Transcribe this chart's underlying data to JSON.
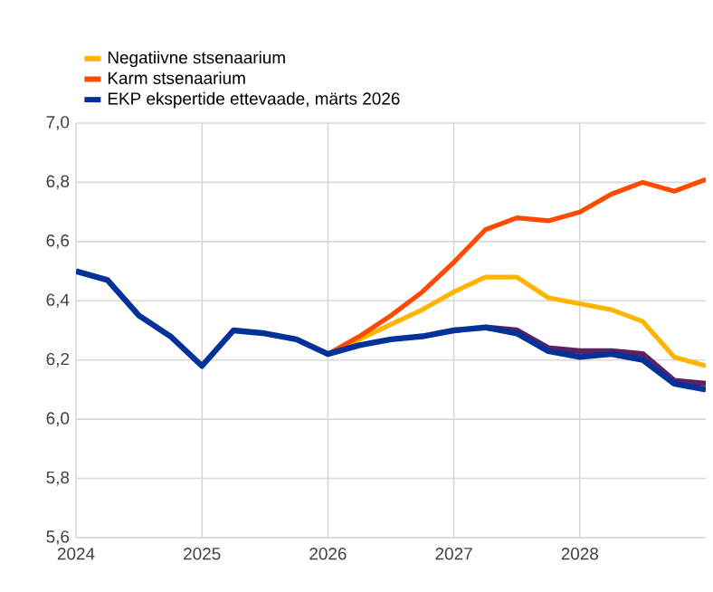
{
  "chart_data": {
    "type": "line",
    "x": [
      2024,
      2024.25,
      2024.5,
      2024.75,
      2025,
      2025.25,
      2025.5,
      2025.75,
      2026,
      2026.25,
      2026.5,
      2026.75,
      2027,
      2027.25,
      2027.5,
      2027.75,
      2028,
      2028.25,
      2028.5,
      2028.75,
      2029
    ],
    "series": [
      {
        "color": "#5c2161",
        "x": [
          2027.25,
          2027.5,
          2027.75,
          2028,
          2028.25,
          2028.5,
          2028.75,
          2029
        ],
        "values": [
          6.31,
          6.3,
          6.24,
          6.23,
          6.23,
          6.22,
          6.13,
          6.12
        ]
      },
      {
        "name": "Negatiivne stsenaarium",
        "color": "#ffb400",
        "x": [
          2026,
          2026.25,
          2026.5,
          2026.75,
          2027,
          2027.25,
          2027.5,
          2027.75,
          2028,
          2028.25,
          2028.5,
          2028.75,
          2029
        ],
        "values": [
          6.22,
          6.27,
          6.32,
          6.37,
          6.43,
          6.48,
          6.48,
          6.41,
          6.39,
          6.37,
          6.33,
          6.21,
          6.18
        ]
      },
      {
        "name": "Karm stsenaarium",
        "color": "#ff4b00",
        "x": [
          2026,
          2026.25,
          2026.5,
          2026.75,
          2027,
          2027.25,
          2027.5,
          2027.75,
          2028,
          2028.25,
          2028.5,
          2028.75,
          2029
        ],
        "values": [
          6.22,
          6.28,
          6.35,
          6.43,
          6.53,
          6.64,
          6.68,
          6.67,
          6.7,
          6.76,
          6.8,
          6.77,
          6.81
        ]
      },
      {
        "name": "EKP ekspertide ettevaade, märts 2026",
        "color": "#003299",
        "values": [
          6.5,
          6.47,
          6.35,
          6.28,
          6.18,
          6.3,
          6.29,
          6.27,
          6.22,
          6.25,
          6.27,
          6.28,
          6.3,
          6.31,
          6.29,
          6.23,
          6.21,
          6.22,
          6.2,
          6.12,
          6.1
        ]
      }
    ],
    "xlim": [
      2024,
      2029
    ],
    "xticks": [
      2024,
      2025,
      2026,
      2027,
      2028
    ],
    "ylim": [
      5.6,
      7.0
    ],
    "yticks": [
      {
        "value": 5.6,
        "label": "5,6"
      },
      {
        "value": 5.8,
        "label": "5,8"
      },
      {
        "value": 6.0,
        "label": "6,0"
      },
      {
        "value": 6.2,
        "label": "6,2"
      },
      {
        "value": 6.4,
        "label": "6,4"
      },
      {
        "value": 6.6,
        "label": "6,6"
      },
      {
        "value": 6.8,
        "label": "6,8"
      },
      {
        "value": 7.0,
        "label": "7,0"
      }
    ],
    "grid": true,
    "legend": "top left"
  }
}
